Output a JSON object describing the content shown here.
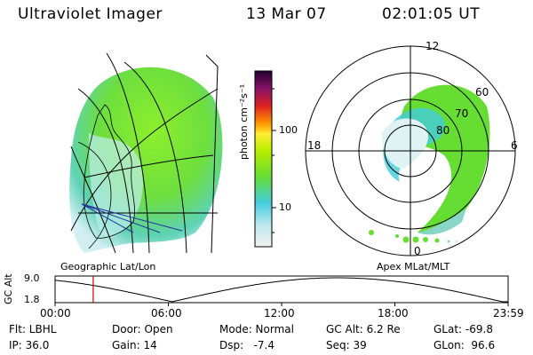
{
  "header": {
    "instrument": "Ultraviolet Imager",
    "date": "13 Mar 07",
    "time": "02:01:05 UT"
  },
  "colorbar": {
    "unit_label": "photon cm⁻²s⁻¹",
    "ticks": [
      "100",
      "10"
    ],
    "scale": "log"
  },
  "polar_plot": {
    "mlt_labels": {
      "top": "12",
      "left": "18",
      "right": "6",
      "bottom": "0"
    },
    "lat_labels": [
      "60",
      "70",
      "80"
    ],
    "caption": "Apex MLat/MLT"
  },
  "geo_plot": {
    "caption": "Geographic Lat/Lon"
  },
  "altitude_plot": {
    "ylabel": "GC Alt",
    "yticks": [
      "9.0",
      "1.8"
    ],
    "xticks": [
      "00:00",
      "06:00",
      "12:00",
      "18:00",
      "23:59"
    ],
    "marker_time_hours": 2.02,
    "range_re": [
      1.8,
      9.0
    ]
  },
  "status": {
    "filter": "Flt: LBHL",
    "ip": "IP: 36.0",
    "door": "Door: Open",
    "gain": "Gain: 14",
    "mode": "Mode: Normal",
    "dsp": "Dsp:   -7.4",
    "gc_alt": "GC Alt: 6.2 Re",
    "seq": "Seq: 39",
    "glat": "GLat: -69.8",
    "glon": "GLon:  96.6"
  },
  "colors": {
    "aurora_green": "#66dd22",
    "aurora_cyan": "#44ccdd",
    "marker": "#cc0000"
  }
}
